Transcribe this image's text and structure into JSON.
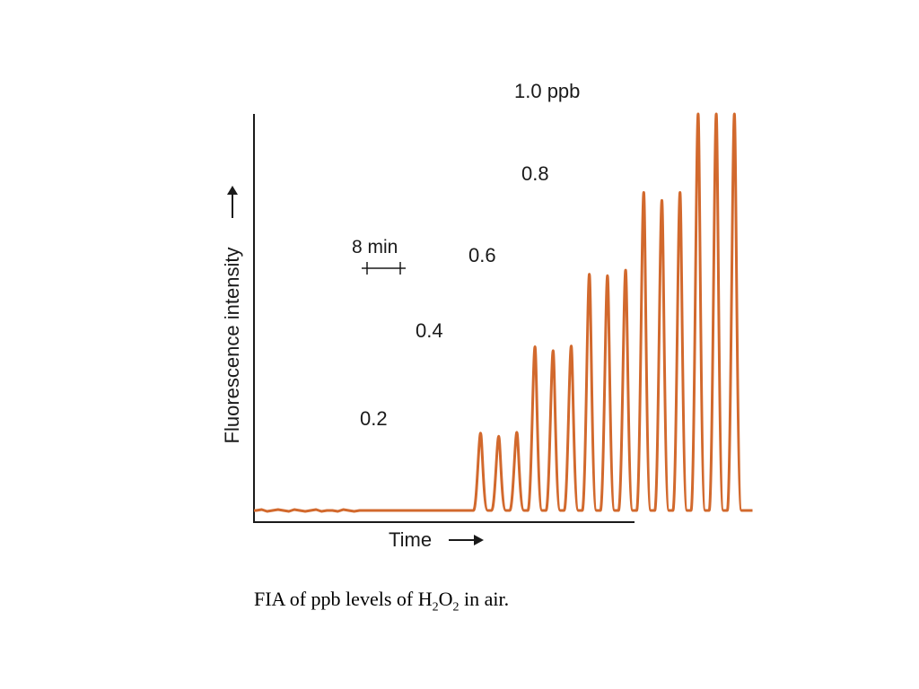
{
  "chart_data": {
    "type": "line",
    "xlabel": "Time",
    "ylabel": "Fluorescence intensity",
    "scale_bar_label": "8 min",
    "line_color": "#d2692d",
    "axis_color": "#1a1a1a",
    "group_labels": [
      "0.2",
      "0.4",
      "0.6",
      "0.8",
      "1.0 ppb"
    ],
    "peaks": [
      {
        "group": "0.2",
        "time": 50,
        "intensity": 0.195
      },
      {
        "group": "0.2",
        "time": 54,
        "intensity": 0.187
      },
      {
        "group": "0.2",
        "time": 58,
        "intensity": 0.197
      },
      {
        "group": "0.4",
        "time": 62,
        "intensity": 0.413
      },
      {
        "group": "0.4",
        "time": 66,
        "intensity": 0.403
      },
      {
        "group": "0.4",
        "time": 70,
        "intensity": 0.415
      },
      {
        "group": "0.6",
        "time": 74,
        "intensity": 0.596
      },
      {
        "group": "0.6",
        "time": 78,
        "intensity": 0.592
      },
      {
        "group": "0.6",
        "time": 82,
        "intensity": 0.606
      },
      {
        "group": "0.8",
        "time": 86,
        "intensity": 0.802
      },
      {
        "group": "0.8",
        "time": 90,
        "intensity": 0.782
      },
      {
        "group": "0.8",
        "time": 94,
        "intensity": 0.802
      },
      {
        "group": "1.0 ppb",
        "time": 98,
        "intensity": 1.0
      },
      {
        "group": "1.0 ppb",
        "time": 102,
        "intensity": 1.0
      },
      {
        "group": "1.0 ppb",
        "time": 106,
        "intensity": 1.0
      }
    ]
  },
  "caption": {
    "prefix": "FIA of ppb levels of H",
    "sub1": "2",
    "mid": "O",
    "sub2": "2",
    "suffix": " in air."
  }
}
